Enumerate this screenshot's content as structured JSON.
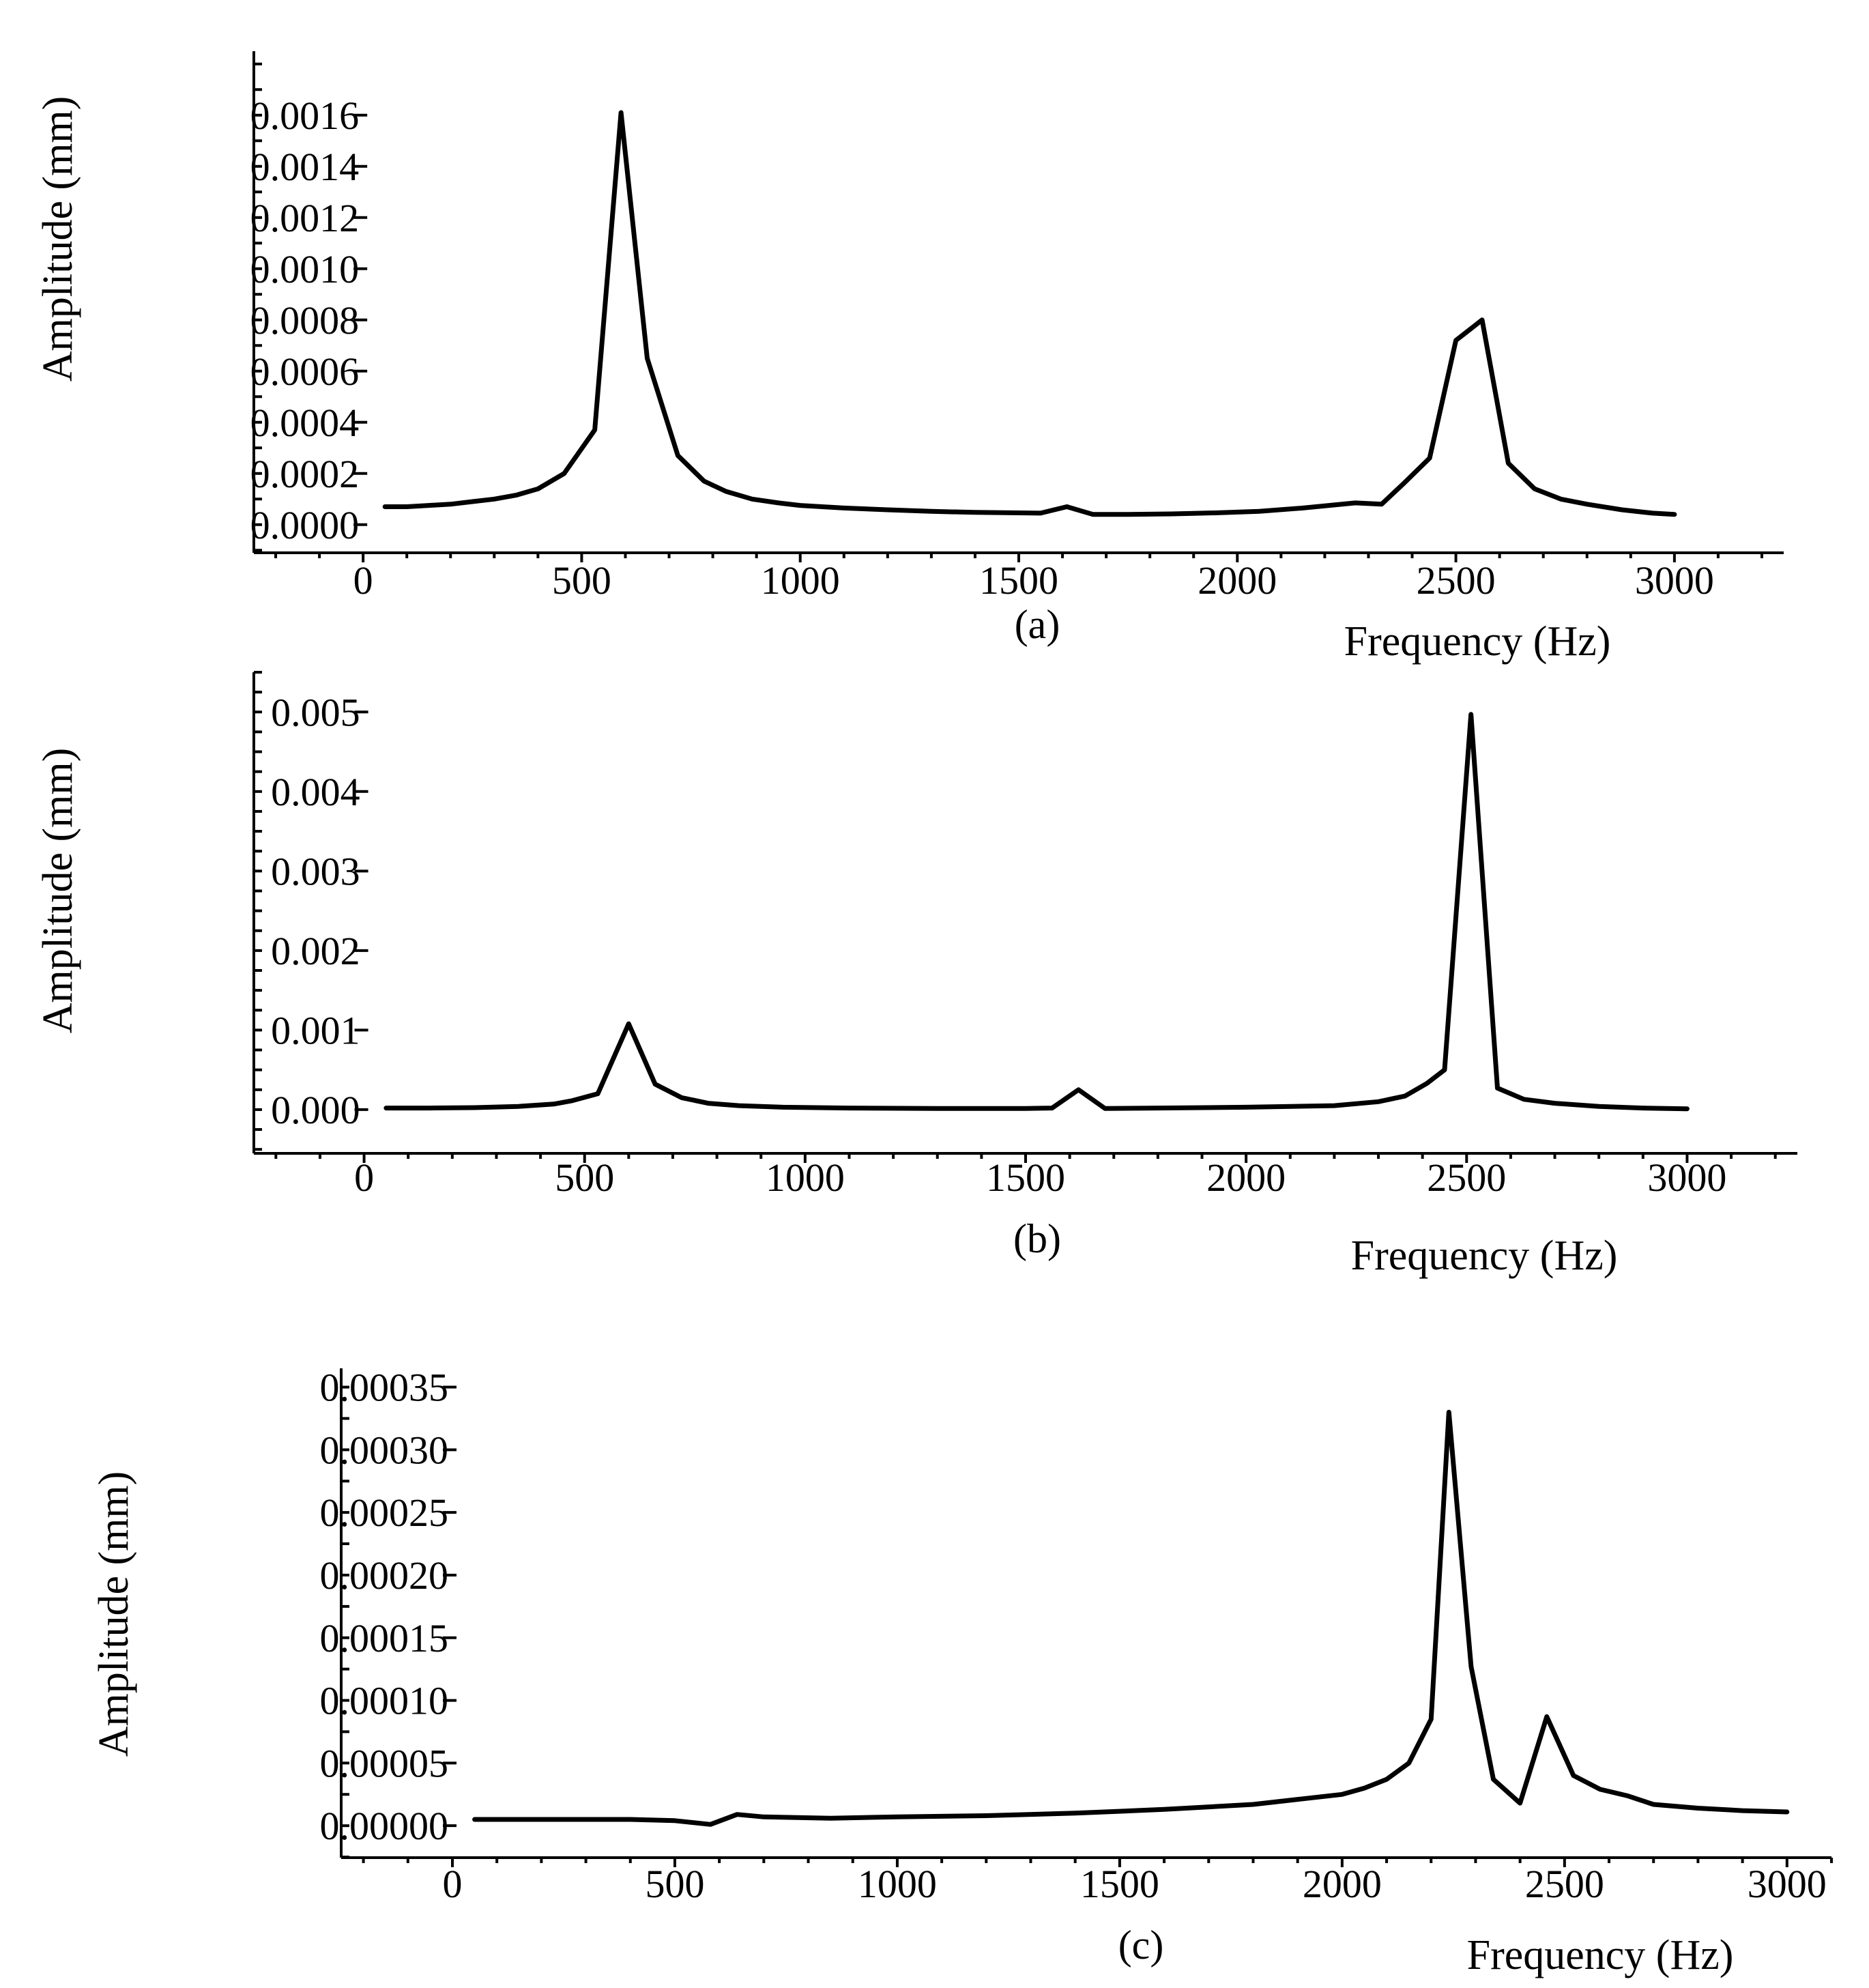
{
  "chart_data": [
    {
      "type": "line",
      "panel_label": "(a)",
      "xlabel": "Frequency (Hz)",
      "ylabel": "Amplitude (mm)",
      "xlim": [
        -250,
        3250
      ],
      "ylim": [
        -0.00011,
        0.00185
      ],
      "x_ticks": [
        0,
        500,
        1000,
        1500,
        2000,
        2500,
        3000
      ],
      "x_tick_labels": [
        "0",
        "500",
        "1000",
        "1500",
        "2000",
        "2500",
        "3000"
      ],
      "x_minor_step": 100,
      "y_ticks": [
        0.0,
        0.0002,
        0.0004,
        0.0006,
        0.0008,
        0.001,
        0.0012,
        0.0014,
        0.0016
      ],
      "y_tick_labels": [
        "0.0000",
        "0.0002",
        "0.0004",
        "0.0006",
        "0.0008",
        "0.0010",
        "0.0012",
        "0.0014",
        "0.0016"
      ],
      "y_minor_step": 0.0001,
      "series": [
        {
          "name": "amplitude",
          "x": [
            50,
            100,
            150,
            200,
            250,
            300,
            350,
            400,
            460,
            530,
            590,
            650,
            720,
            780,
            830,
            890,
            950,
            1000,
            1100,
            1200,
            1300,
            1400,
            1500,
            1550,
            1610,
            1670,
            1750,
            1850,
            1950,
            2050,
            2150,
            2270,
            2330,
            2380,
            2440,
            2500,
            2560,
            2620,
            2680,
            2740,
            2800,
            2880,
            2950,
            3000
          ],
          "y": [
            7e-05,
            7e-05,
            7.5e-05,
            8e-05,
            9e-05,
            0.0001,
            0.000115,
            0.00014,
            0.0002,
            0.00037,
            0.00161,
            0.00065,
            0.00027,
            0.00017,
            0.00013,
            0.0001,
            8.5e-05,
            7.5e-05,
            6.5e-05,
            5.8e-05,
            5.2e-05,
            4.8e-05,
            4.6e-05,
            4.5e-05,
            7e-05,
            4e-05,
            4e-05,
            4.2e-05,
            4.6e-05,
            5.2e-05,
            6.5e-05,
            8.5e-05,
            8e-05,
            0.00016,
            0.00026,
            0.00072,
            0.0008,
            0.00024,
            0.00014,
            0.0001,
            8e-05,
            5.8e-05,
            4.5e-05,
            4e-05
          ]
        }
      ]
    },
    {
      "type": "line",
      "panel_label": "(b)",
      "xlabel": "Frequency (Hz)",
      "ylabel": "Amplitude (mm)",
      "xlim": [
        -250,
        3250
      ],
      "ylim": [
        -0.00055,
        0.0055
      ],
      "x_ticks": [
        0,
        500,
        1000,
        1500,
        2000,
        2500,
        3000
      ],
      "x_tick_labels": [
        "0",
        "500",
        "1000",
        "1500",
        "2000",
        "2500",
        "3000"
      ],
      "x_minor_step": 100,
      "y_ticks": [
        0.0,
        0.001,
        0.002,
        0.003,
        0.004,
        0.005
      ],
      "y_tick_labels": [
        "0.000",
        "0.001",
        "0.002",
        "0.003",
        "0.004",
        "0.005"
      ],
      "y_minor_step": 0.00025,
      "series": [
        {
          "name": "amplitude",
          "x": [
            50,
            150,
            250,
            350,
            430,
            470,
            530,
            600,
            660,
            720,
            780,
            850,
            950,
            1100,
            1300,
            1500,
            1560,
            1620,
            1680,
            1800,
            2000,
            2200,
            2300,
            2360,
            2410,
            2450,
            2510,
            2570,
            2630,
            2700,
            2800,
            2900,
            3000
          ],
          "y": [
            2e-05,
            2e-05,
            2.5e-05,
            4e-05,
            7e-05,
            0.00011,
            0.0002,
            0.00108,
            0.00032,
            0.00015,
            8e-05,
            5e-05,
            3e-05,
            2e-05,
            1.5e-05,
            1.5e-05,
            2e-05,
            0.00025,
            1.5e-05,
            2e-05,
            3e-05,
            5e-05,
            0.0001,
            0.00017,
            0.00033,
            0.0005,
            0.00497,
            0.00027,
            0.00013,
            8e-05,
            4e-05,
            2e-05,
            1e-05
          ]
        }
      ]
    },
    {
      "type": "line",
      "panel_label": "(c)",
      "xlabel": "Frequency (Hz)",
      "ylabel": "Amplitude (mm)",
      "xlim": [
        -250,
        3100
      ],
      "ylim": [
        -2.55e-05,
        0.000365
      ],
      "x_ticks": [
        0,
        500,
        1000,
        1500,
        2000,
        2500,
        3000
      ],
      "x_tick_labels": [
        "0",
        "500",
        "1000",
        "1500",
        "2000",
        "2500",
        "3000"
      ],
      "x_minor_step": 100,
      "y_ticks": [
        0.0,
        5e-05,
        0.0001,
        0.00015,
        0.0002,
        0.00025,
        0.0003,
        0.00035
      ],
      "y_tick_labels": [
        "0.00000",
        "0.00005",
        "0.00010",
        "0.00015",
        "0.00020",
        "0.00025",
        "0.00030",
        "0.00035"
      ],
      "y_minor_step": 2.5e-05,
      "series": [
        {
          "name": "amplitude",
          "x": [
            50,
            200,
            400,
            500,
            580,
            640,
            700,
            850,
            1000,
            1200,
            1400,
            1600,
            1800,
            1900,
            2000,
            2050,
            2100,
            2150,
            2200,
            2240,
            2290,
            2340,
            2400,
            2460,
            2520,
            2580,
            2640,
            2700,
            2800,
            2900,
            3000
          ],
          "y": [
            5e-06,
            5e-06,
            5e-06,
            4e-06,
            1e-06,
            9e-06,
            7e-06,
            6e-06,
            7e-06,
            8e-06,
            1e-05,
            1.3e-05,
            1.7e-05,
            2.1e-05,
            2.5e-05,
            3e-05,
            3.7e-05,
            5e-05,
            8.5e-05,
            0.00033,
            0.000127,
            3.7e-05,
            1.8e-05,
            8.7e-05,
            4e-05,
            2.9e-05,
            2.4e-05,
            1.7e-05,
            1.4e-05,
            1.2e-05,
            1.1e-05
          ]
        }
      ]
    }
  ]
}
